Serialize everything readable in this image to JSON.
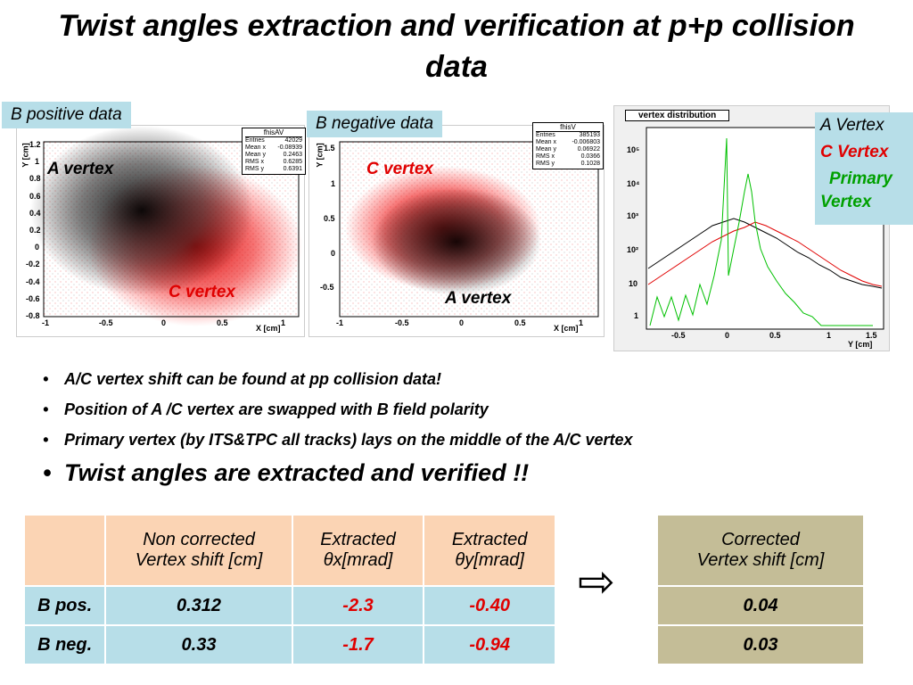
{
  "title": "Twist angles extraction and verification at p+p collision data",
  "tags": {
    "bpos": "B positive data",
    "bneg": "B negative data"
  },
  "plot_left": {
    "stats_title": "fhisAV",
    "stats": [
      [
        "Entries",
        "42029"
      ],
      [
        "Mean x",
        "-0.08939"
      ],
      [
        "Mean y",
        "0.2463"
      ],
      [
        "RMS x",
        "0.6285"
      ],
      [
        "RMS y",
        "0.6391"
      ]
    ],
    "label_a": "A vertex",
    "label_c": "C vertex",
    "xlabel": "X [cm]",
    "ylabel": "Y [cm]",
    "xticks": [
      "-1",
      "-0.5",
      "0",
      "0.5",
      "1"
    ],
    "yticks": [
      "1.2",
      "1",
      "0.8",
      "0.6",
      "0.4",
      "0.2",
      "0",
      "-0.2",
      "-0.4",
      "-0.6",
      "-0.8"
    ]
  },
  "plot_mid": {
    "stats_title": "fhisV",
    "stats": [
      [
        "Entries",
        "385193"
      ],
      [
        "Mean x",
        "-0.006803"
      ],
      [
        "Mean y",
        "0.06922"
      ],
      [
        "RMS x",
        "0.0366"
      ],
      [
        "RMS y",
        "0.1028"
      ]
    ],
    "label_a": "A vertex",
    "label_c": "C vertex",
    "xlabel": "X [cm]",
    "ylabel": "Y [cm]",
    "xticks": [
      "-1",
      "-0.5",
      "0",
      "0.5",
      "1"
    ],
    "yticks": [
      "1.5",
      "1",
      "0.5",
      "0",
      "-0.5"
    ]
  },
  "plot_right": {
    "title": "vertex distribution",
    "legend": {
      "a": "A Vertex",
      "c": "C Vertex",
      "p1": "Primary",
      "p2": "Vertex"
    },
    "xlabel": "Y [cm]",
    "xticks": [
      "-0.5",
      "0",
      "0.5",
      "1",
      "1.5"
    ],
    "yticks": [
      "10⁵",
      "10⁴",
      "10³",
      "10²",
      "10",
      "1"
    ]
  },
  "bullets": [
    "A/C vertex shift can be found at pp collision data!",
    "Position of A /C vertex are swapped with B field polarity",
    "Primary vertex (by ITS&TPC all tracks) lays on the middle of the A/C vertex",
    "Twist angles are extracted and verified !!"
  ],
  "table": {
    "headers": [
      "",
      "Non corrected",
      "Vertex shift [cm]",
      "Extracted",
      "θx[mrad]",
      "Extracted",
      "θy[mrad]"
    ],
    "rows": [
      [
        "B pos.",
        "0.312",
        "-2.3",
        "-0.40"
      ],
      [
        "B neg.",
        "0.33",
        "-1.7",
        "-0.94"
      ]
    ]
  },
  "arrow": "⇨",
  "table2": {
    "h1": "Corrected",
    "h2": "Vertex shift [cm]",
    "rows": [
      "0.04",
      "0.03"
    ]
  },
  "colors": {
    "accent_blue": "#b7dee8",
    "accent_orange": "#fbd4b4",
    "tan": "#c4bd97",
    "red": "#e00000",
    "green": "#00c000"
  }
}
